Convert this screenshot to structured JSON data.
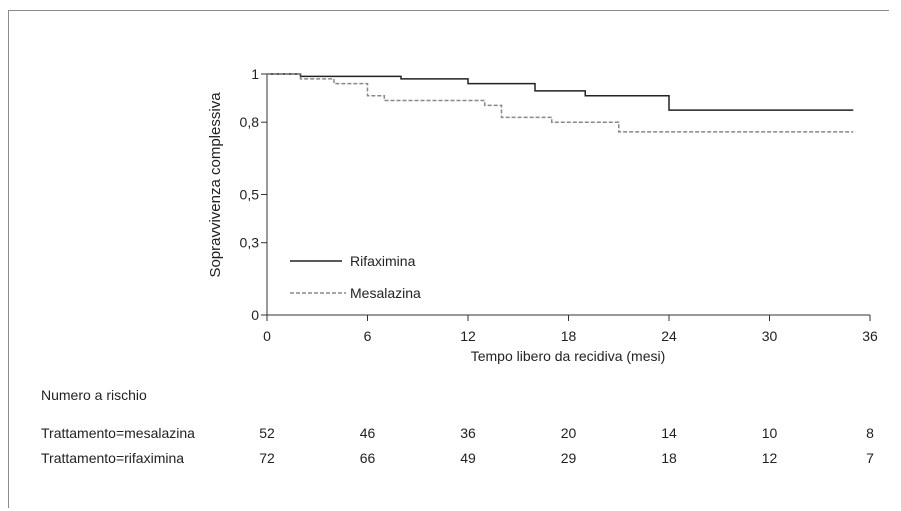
{
  "chart_data": {
    "type": "line",
    "xlabel": "Tempo libero da recidiva (mesi)",
    "ylabel": "Sopravvivenza complessiva",
    "xlim": [
      0,
      36
    ],
    "ylim": [
      0,
      1
    ],
    "x_ticks": [
      0,
      6,
      12,
      18,
      24,
      30,
      36
    ],
    "y_ticks": [
      {
        "value": 0,
        "label": "0"
      },
      {
        "value": 0.3,
        "label": "0,3"
      },
      {
        "value": 0.5,
        "label": "0,5"
      },
      {
        "value": 0.8,
        "label": "0,8"
      },
      {
        "value": 1,
        "label": "1"
      }
    ],
    "legend_position": "bottom-left",
    "series": [
      {
        "name": "Rifaximina",
        "style": "solid",
        "color": "#222222",
        "x": [
          0,
          2,
          8,
          12,
          16,
          19,
          24,
          35
        ],
        "y": [
          1.0,
          0.99,
          0.98,
          0.96,
          0.93,
          0.91,
          0.85,
          0.85
        ]
      },
      {
        "name": "Mesalazina",
        "style": "dashed",
        "color": "#888888",
        "x": [
          0,
          2,
          4,
          6,
          7,
          13,
          14,
          17,
          21,
          35
        ],
        "y": [
          1.0,
          0.98,
          0.96,
          0.91,
          0.89,
          0.87,
          0.82,
          0.8,
          0.76,
          0.76
        ]
      }
    ]
  },
  "risk_table": {
    "title": "Numero a rischio",
    "rows": [
      {
        "label": "Trattamento=mesalazina",
        "values": [
          "52",
          "46",
          "36",
          "20",
          "14",
          "10",
          "8"
        ]
      },
      {
        "label": "Trattamento=rifaximina",
        "values": [
          "72",
          "66",
          "49",
          "29",
          "18",
          "12",
          "7"
        ]
      }
    ]
  }
}
